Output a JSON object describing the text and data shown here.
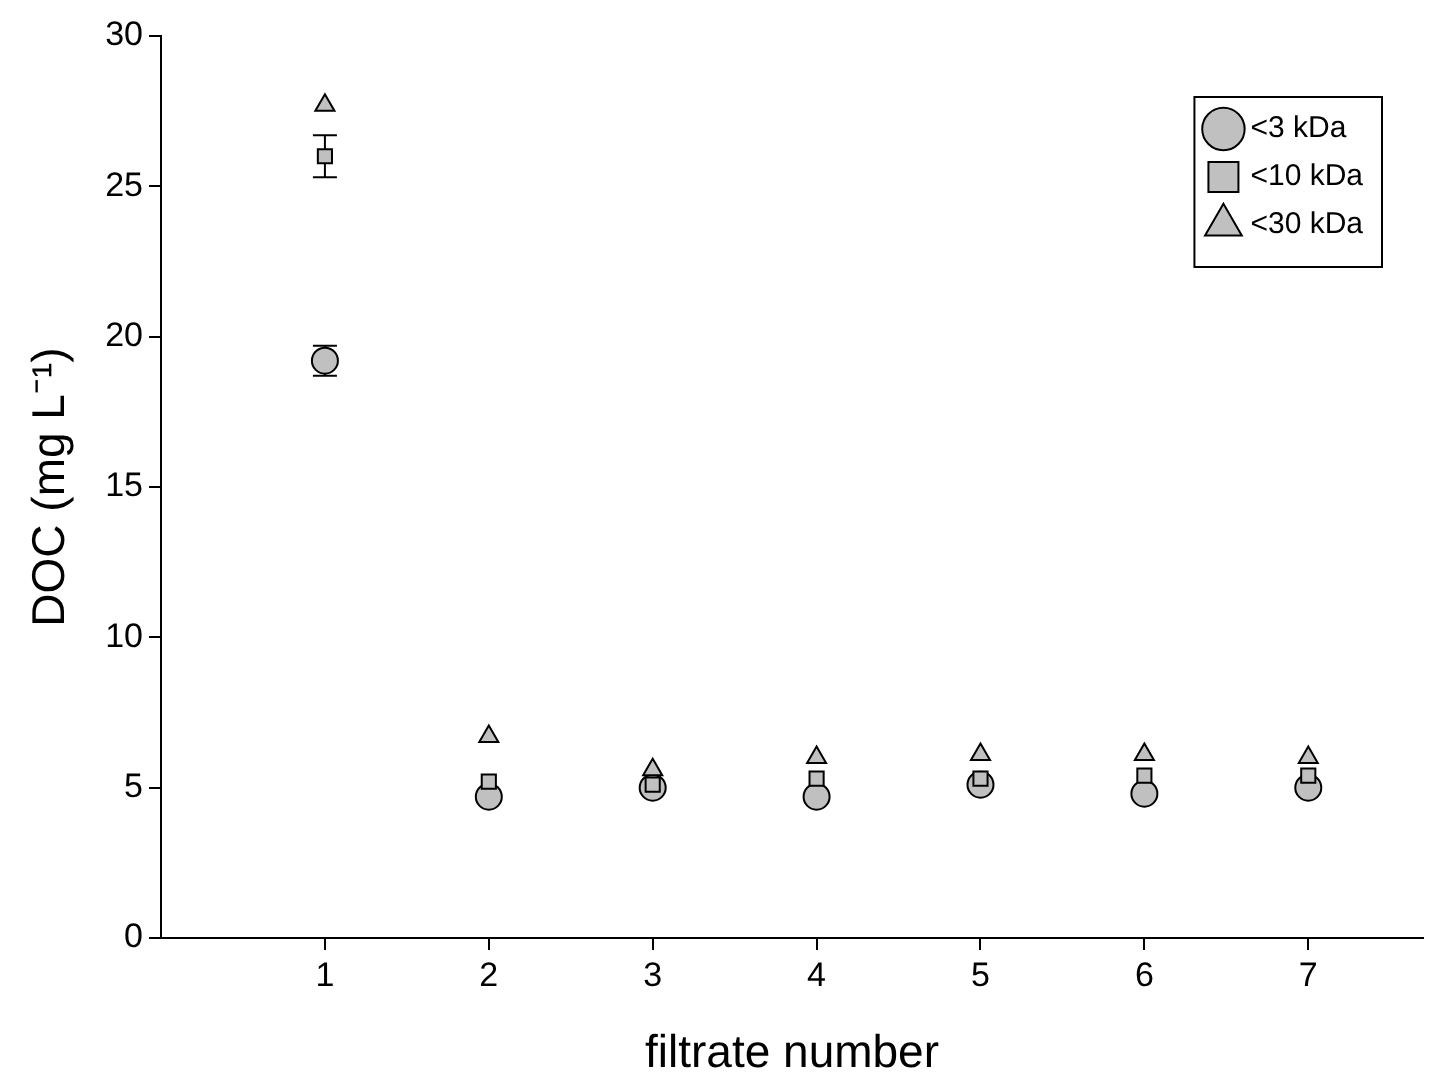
{
  "chart_data": {
    "type": "scatter",
    "xlabel": "filtrate number",
    "ylabel": "DOC (mg L⁻¹)",
    "x": [
      1,
      2,
      3,
      4,
      5,
      6,
      7
    ],
    "series": [
      {
        "name": "<3 kDa",
        "color": "#c0c0c0",
        "marker": "circle",
        "values": [
          19.2,
          4.7,
          5.0,
          4.7,
          5.1,
          4.8,
          5.0
        ],
        "errors": [
          0.5,
          null,
          null,
          null,
          null,
          null,
          null
        ]
      },
      {
        "name": "<10 kDa",
        "color": "#c0c0c0",
        "marker": "square",
        "values": [
          26.0,
          5.2,
          5.1,
          5.3,
          5.3,
          5.4,
          5.4
        ],
        "errors": [
          0.7,
          null,
          null,
          null,
          null,
          null,
          null
        ]
      },
      {
        "name": "<30 kDa",
        "color": "#c0c0c0",
        "marker": "triangle",
        "values": [
          27.7,
          6.7,
          5.6,
          6.0,
          6.1,
          6.1,
          6.0
        ],
        "errors": [
          null,
          null,
          null,
          null,
          null,
          null,
          null
        ]
      }
    ],
    "xlim": [
      0,
      7.7
    ],
    "xticks": [
      1,
      2,
      3,
      4,
      5,
      6,
      7
    ],
    "ylim": [
      0,
      30
    ],
    "yticks": [
      0,
      5,
      10,
      15,
      20,
      25,
      30
    ],
    "grid": false,
    "legend": "top right"
  }
}
